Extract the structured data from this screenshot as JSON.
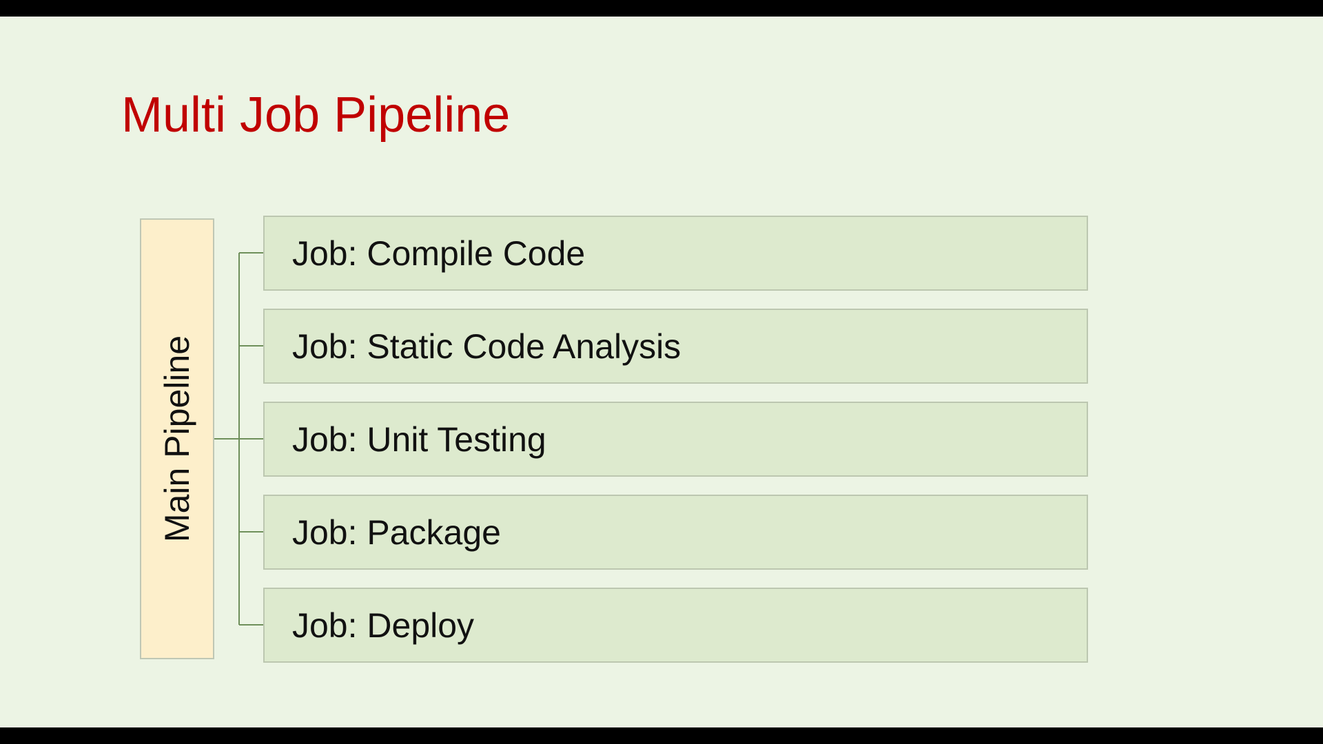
{
  "slide": {
    "title": "Multi Job Pipeline",
    "main_pipeline_label": "Main Pipeline",
    "jobs": [
      {
        "label": "Job: Compile Code"
      },
      {
        "label": "Job: Static Code Analysis"
      },
      {
        "label": "Job: Unit Testing"
      },
      {
        "label": "Job: Package"
      },
      {
        "label": "Job: Deploy"
      }
    ]
  },
  "colors": {
    "title": "#C00000",
    "slide_background": "#ECF4E4",
    "main_box_fill": "#FDEFCB",
    "job_box_fill": "#DDEACE",
    "connector": "#6E8F5A"
  }
}
